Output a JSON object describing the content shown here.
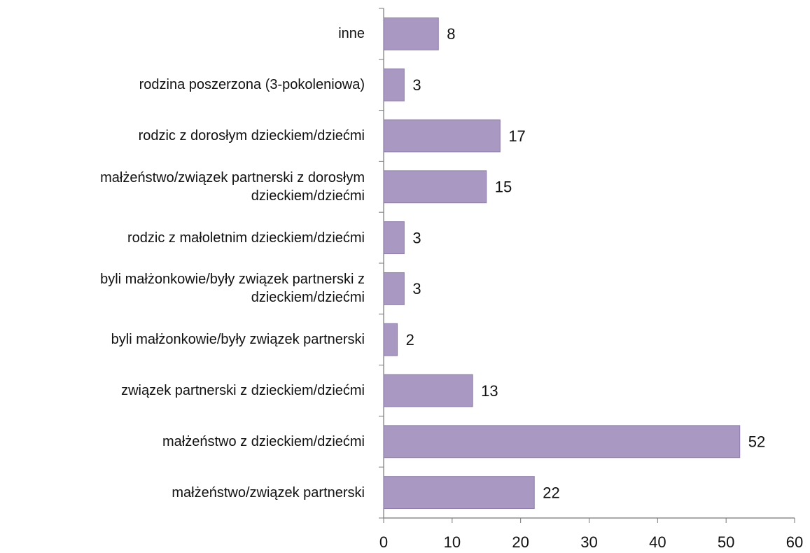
{
  "chart_data": {
    "type": "hbar",
    "categories": [
      "inne",
      "rodzina poszerzona (3-pokoleniowa)",
      "rodzic z dorosłym dzieckiem/dziećmi",
      "małżeństwo/związek partnerski z dorosłym\ndzieckiem/dziećmi",
      "rodzic z małoletnim dzieckiem/dziećmi",
      "byli małżonkowie/były związek partnerski z\ndzieckiem/dziećmi",
      "byli małżonkowie/były związek partnerski",
      "związek partnerski z dzieckiem/dziećmi",
      "małżeństwo z dzieckiem/dziećmi",
      "małżeństwo/związek partnerski"
    ],
    "values": [
      8,
      3,
      17,
      15,
      3,
      3,
      2,
      13,
      52,
      22
    ],
    "color": "#a898c2",
    "xlim": [
      0,
      60
    ],
    "xticks": [
      0,
      10,
      20,
      30,
      40,
      50,
      60
    ]
  }
}
